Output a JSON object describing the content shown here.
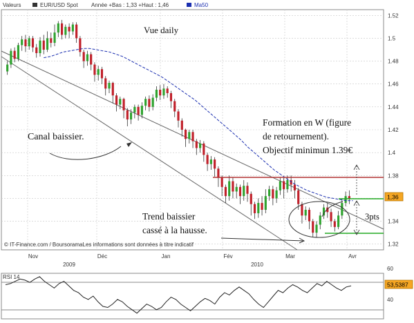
{
  "header": {
    "valeurs_label": "Valeurs",
    "instrument": "EUR/USD Spot",
    "range_text": "Année +Bas : 1,33 +Haut : 1,46",
    "ma_label": "Ma50"
  },
  "colors": {
    "up": "#2fa32f",
    "down": "#c0202a",
    "ma": "#1b2fb0",
    "channel": "#555555",
    "resistance": "#b03030",
    "target": "#22aa22",
    "price_badge_bg": "#f5a623",
    "grid": "#c8c8c8"
  },
  "price_badge": "1,36",
  "rsi_badge": "53,5387",
  "rsi_label": "RSI 14",
  "footer_text": "© IT-Finance.com / BoursoramaLes informations sont données à titre indicatif",
  "annotations": {
    "vue": "Vue daily",
    "canal": "Canal baissier.",
    "formation_line1": "Formation en W (figure",
    "formation_line2": "de retournement).",
    "formation_line3": "Objectif minimun 1.39€",
    "trend_line1": "Trend baissier",
    "trend_line2": "cassé à la hausse.",
    "pts": "3pts"
  },
  "chart_data": {
    "type": "candlestick",
    "y_ticks": [
      "1.52",
      "1.5",
      "1.48",
      "1.46",
      "1.44",
      "1.42",
      "1.4",
      "1.38",
      "1.36",
      "1.34",
      "1.32"
    ],
    "ylim": [
      1.315,
      1.525
    ],
    "x_month_labels": [
      "Nov",
      "Déc",
      "Jan",
      "Fév",
      "Mar",
      "Avr"
    ],
    "x_year_labels": [
      "2009",
      "2010"
    ],
    "rsi_ticks": [
      "60",
      "40"
    ],
    "rsi_ylim": [
      25,
      65
    ],
    "candles": [
      [
        1.471,
        1.477,
        1.468,
        1.48
      ],
      [
        1.477,
        1.489,
        1.474,
        1.491
      ],
      [
        1.489,
        1.482,
        1.479,
        1.492
      ],
      [
        1.482,
        1.494,
        1.48,
        1.496
      ],
      [
        1.494,
        1.499,
        1.489,
        1.502
      ],
      [
        1.499,
        1.493,
        1.488,
        1.503
      ],
      [
        1.493,
        1.5,
        1.49,
        1.502
      ],
      [
        1.5,
        1.492,
        1.488,
        1.502
      ],
      [
        1.492,
        1.487,
        1.483,
        1.495
      ],
      [
        1.487,
        1.498,
        1.484,
        1.501
      ],
      [
        1.498,
        1.49,
        1.486,
        1.503
      ],
      [
        1.49,
        1.5,
        1.488,
        1.506
      ],
      [
        1.5,
        1.496,
        1.492,
        1.505
      ],
      [
        1.496,
        1.505,
        1.493,
        1.512
      ],
      [
        1.505,
        1.513,
        1.501,
        1.515
      ],
      [
        1.513,
        1.503,
        1.499,
        1.516
      ],
      [
        1.503,
        1.51,
        1.5,
        1.512
      ],
      [
        1.51,
        1.506,
        1.5,
        1.513
      ],
      [
        1.506,
        1.512,
        1.503,
        1.514
      ],
      [
        1.512,
        1.5,
        1.496,
        1.514
      ],
      [
        1.5,
        1.488,
        1.484,
        1.502
      ],
      [
        1.488,
        1.48,
        1.474,
        1.49
      ],
      [
        1.48,
        1.486,
        1.476,
        1.489
      ],
      [
        1.486,
        1.477,
        1.472,
        1.488
      ],
      [
        1.477,
        1.468,
        1.462,
        1.479
      ],
      [
        1.468,
        1.473,
        1.463,
        1.476
      ],
      [
        1.473,
        1.465,
        1.46,
        1.475
      ],
      [
        1.465,
        1.456,
        1.45,
        1.467
      ],
      [
        1.456,
        1.461,
        1.452,
        1.463
      ],
      [
        1.461,
        1.45,
        1.443,
        1.462
      ],
      [
        1.45,
        1.442,
        1.436,
        1.452
      ],
      [
        1.442,
        1.447,
        1.438,
        1.449
      ],
      [
        1.447,
        1.437,
        1.43,
        1.448
      ],
      [
        1.437,
        1.429,
        1.423,
        1.439
      ],
      [
        1.429,
        1.435,
        1.425,
        1.438
      ],
      [
        1.435,
        1.44,
        1.43,
        1.442
      ],
      [
        1.44,
        1.433,
        1.428,
        1.442
      ],
      [
        1.433,
        1.441,
        1.43,
        1.444
      ],
      [
        1.441,
        1.447,
        1.437,
        1.449
      ],
      [
        1.447,
        1.44,
        1.436,
        1.45
      ],
      [
        1.44,
        1.448,
        1.437,
        1.451
      ],
      [
        1.448,
        1.455,
        1.445,
        1.458
      ],
      [
        1.455,
        1.45,
        1.446,
        1.459
      ],
      [
        1.45,
        1.456,
        1.447,
        1.46
      ],
      [
        1.456,
        1.452,
        1.448,
        1.458
      ],
      [
        1.452,
        1.445,
        1.439,
        1.454
      ],
      [
        1.445,
        1.436,
        1.431,
        1.447
      ],
      [
        1.436,
        1.428,
        1.422,
        1.438
      ],
      [
        1.428,
        1.42,
        1.414,
        1.43
      ],
      [
        1.42,
        1.412,
        1.405,
        1.421
      ],
      [
        1.412,
        1.418,
        1.408,
        1.42
      ],
      [
        1.418,
        1.41,
        1.404,
        1.42
      ],
      [
        1.41,
        1.404,
        1.398,
        1.412
      ],
      [
        1.404,
        1.408,
        1.4,
        1.411
      ],
      [
        1.408,
        1.398,
        1.392,
        1.41
      ],
      [
        1.398,
        1.39,
        1.384,
        1.4
      ],
      [
        1.39,
        1.394,
        1.385,
        1.397
      ],
      [
        1.394,
        1.386,
        1.379,
        1.396
      ],
      [
        1.386,
        1.378,
        1.37,
        1.388
      ],
      [
        1.378,
        1.37,
        1.362,
        1.38
      ],
      [
        1.37,
        1.362,
        1.356,
        1.372
      ],
      [
        1.362,
        1.375,
        1.358,
        1.38
      ],
      [
        1.375,
        1.366,
        1.36,
        1.378
      ],
      [
        1.366,
        1.37,
        1.36,
        1.373
      ],
      [
        1.37,
        1.362,
        1.355,
        1.372
      ],
      [
        1.362,
        1.371,
        1.358,
        1.376
      ],
      [
        1.371,
        1.364,
        1.357,
        1.374
      ],
      [
        1.364,
        1.355,
        1.345,
        1.366
      ],
      [
        1.355,
        1.347,
        1.342,
        1.357
      ],
      [
        1.347,
        1.356,
        1.343,
        1.36
      ],
      [
        1.356,
        1.35,
        1.345,
        1.362
      ],
      [
        1.35,
        1.362,
        1.347,
        1.368
      ],
      [
        1.362,
        1.368,
        1.358,
        1.371
      ],
      [
        1.368,
        1.36,
        1.354,
        1.371
      ],
      [
        1.36,
        1.367,
        1.356,
        1.37
      ],
      [
        1.367,
        1.375,
        1.363,
        1.378
      ],
      [
        1.375,
        1.368,
        1.36,
        1.378
      ],
      [
        1.368,
        1.376,
        1.365,
        1.38
      ],
      [
        1.376,
        1.372,
        1.366,
        1.38
      ],
      [
        1.372,
        1.367,
        1.36,
        1.376
      ],
      [
        1.367,
        1.355,
        1.35,
        1.369
      ],
      [
        1.355,
        1.345,
        1.338,
        1.357
      ],
      [
        1.345,
        1.35,
        1.341,
        1.353
      ],
      [
        1.35,
        1.34,
        1.333,
        1.352
      ],
      [
        1.34,
        1.33,
        1.326,
        1.342
      ],
      [
        1.33,
        1.337,
        1.326,
        1.34
      ],
      [
        1.337,
        1.345,
        1.333,
        1.348
      ],
      [
        1.345,
        1.352,
        1.342,
        1.355
      ],
      [
        1.352,
        1.348,
        1.343,
        1.356
      ],
      [
        1.348,
        1.34,
        1.335,
        1.351
      ],
      [
        1.34,
        1.335,
        1.331,
        1.342
      ],
      [
        1.335,
        1.345,
        1.333,
        1.349
      ],
      [
        1.345,
        1.356,
        1.342,
        1.36
      ],
      [
        1.356,
        1.362,
        1.353,
        1.366
      ],
      [
        1.362,
        1.36,
        1.355,
        1.367
      ]
    ],
    "ma50": [
      1.483,
      1.484,
      1.486,
      1.488,
      1.489,
      1.49,
      1.491,
      1.491,
      1.49,
      1.489,
      1.488,
      1.486,
      1.484,
      1.481,
      1.478,
      1.475,
      1.472,
      1.469,
      1.466,
      1.462,
      1.458,
      1.454,
      1.45,
      1.446,
      1.441,
      1.436,
      1.431,
      1.426,
      1.421,
      1.416,
      1.411,
      1.405,
      1.4,
      1.395,
      1.39,
      1.385,
      1.381,
      1.377,
      1.373,
      1.37,
      1.367,
      1.365,
      1.363,
      1.361,
      1.36,
      1.359,
      1.358,
      1.358
    ],
    "rsi": [
      55,
      56,
      58,
      60,
      59,
      57,
      60,
      62,
      58,
      55,
      52,
      56,
      58,
      54,
      50,
      48,
      44,
      42,
      45,
      40,
      36,
      35,
      38,
      42,
      40,
      36,
      33,
      30,
      34,
      38,
      36,
      33,
      35,
      40,
      44,
      42,
      38,
      35,
      32,
      36,
      40,
      43,
      41,
      38,
      44,
      48,
      46,
      50,
      53,
      50,
      47,
      42,
      38,
      35,
      40,
      45,
      50,
      48,
      52,
      55,
      53,
      50,
      48,
      52,
      56,
      54,
      58,
      55,
      52,
      50,
      53,
      54
    ]
  }
}
